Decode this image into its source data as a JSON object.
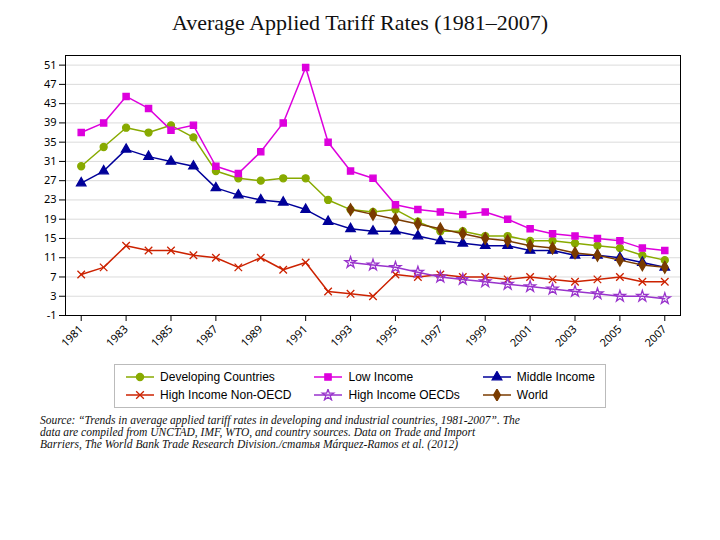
{
  "chart_data": {
    "type": "line",
    "title": "Average Applied Tariff Rates (1981–2007)",
    "caption": "Source: “Trends in average applied tariff rates in developing and industrial countries, 1981-2007”. The\ndata are compiled from UNCTAD, IMF, WTO, and country sources. Data on Trade and Import\nBarriers, The World Bank Trade Research Division./статья  Márquez-Ramos  et al.  (2012)",
    "x": [
      1981,
      1982,
      1983,
      1984,
      1985,
      1986,
      1987,
      1988,
      1989,
      1990,
      1991,
      1992,
      1993,
      1994,
      1995,
      1996,
      1997,
      1998,
      1999,
      2000,
      2001,
      2002,
      2003,
      2004,
      2005,
      2006,
      2007
    ],
    "series": [
      {
        "name": "Developing Countries",
        "color": "#88aa00",
        "marker": "circle",
        "values": [
          30.0,
          34.0,
          38.0,
          37.0,
          38.5,
          36.0,
          29.0,
          27.5,
          27.0,
          27.5,
          27.5,
          23.0,
          21.0,
          20.5,
          21.0,
          18.5,
          16.5,
          16.5,
          15.5,
          15.5,
          14.5,
          14.5,
          14.0,
          13.5,
          13.0,
          11.5,
          10.5
        ]
      },
      {
        "name": "Low Income",
        "color": "#dd00dd",
        "marker": "square",
        "values": [
          37.0,
          39.0,
          44.5,
          42.0,
          37.5,
          38.5,
          30.0,
          28.5,
          33.0,
          39.0,
          50.5,
          35.0,
          29.0,
          27.5,
          22.0,
          21.0,
          20.5,
          20.0,
          20.5,
          19.0,
          17.0,
          16.0,
          15.5,
          15.0,
          14.5,
          13.0,
          12.5
        ]
      },
      {
        "name": "Middle Income",
        "color": "#000099",
        "marker": "triangle",
        "values": [
          26.5,
          29.0,
          33.5,
          32.0,
          31.0,
          30.0,
          25.5,
          24.0,
          23.0,
          22.5,
          21.0,
          18.5,
          17.0,
          16.5,
          16.5,
          15.5,
          14.5,
          14.0,
          13.5,
          13.5,
          12.5,
          12.5,
          11.5,
          11.5,
          11.0,
          10.0,
          9.0
        ]
      },
      {
        "name": "High Income Non-OECD",
        "color": "#cc2200",
        "marker": "x",
        "values": [
          7.5,
          9.0,
          13.5,
          12.5,
          12.5,
          11.5,
          11.0,
          9.0,
          11.0,
          8.5,
          10.0,
          4.0,
          3.5,
          3.0,
          7.5,
          7.0,
          7.5,
          7.0,
          7.0,
          6.5,
          7.0,
          6.5,
          6.0,
          6.5,
          7.0,
          6.0,
          6.0
        ]
      },
      {
        "name": "High Income OECDs",
        "color": "#9933cc",
        "marker": "star",
        "values": [
          null,
          null,
          null,
          null,
          null,
          null,
          null,
          null,
          null,
          null,
          null,
          null,
          10.0,
          9.5,
          9.0,
          8.0,
          7.0,
          6.5,
          6.0,
          5.5,
          5.0,
          4.5,
          4.0,
          3.5,
          3.0,
          3.0,
          2.5
        ]
      },
      {
        "name": "World",
        "color": "#7a3b00",
        "marker": "diamond",
        "values": [
          null,
          null,
          null,
          null,
          null,
          null,
          null,
          null,
          null,
          null,
          null,
          null,
          21.0,
          20.0,
          19.0,
          18.0,
          17.0,
          16.0,
          15.0,
          14.5,
          13.5,
          13.0,
          12.0,
          11.5,
          10.5,
          9.5,
          9.0
        ]
      }
    ],
    "xlim": [
      1980.3,
      2007.7
    ],
    "xticks": [
      1981,
      1983,
      1985,
      1987,
      1989,
      1991,
      1993,
      1995,
      1997,
      1999,
      2001,
      2003,
      2005,
      2007
    ],
    "ylim": [
      -1.0,
      53.0
    ],
    "yticks": [
      -1.0,
      3.0,
      7.0,
      11.0,
      15.0,
      19.0,
      23.0,
      27.0,
      31.0,
      35.0,
      39.0,
      43.0,
      47.0,
      51.0
    ],
    "grid": "y",
    "legend": "bottom"
  }
}
